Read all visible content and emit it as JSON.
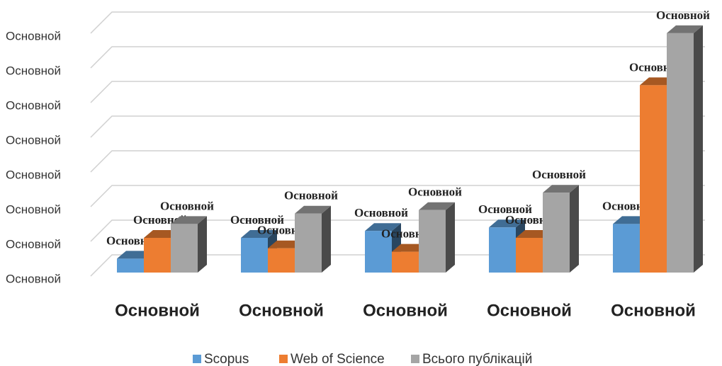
{
  "chart_data": {
    "type": "bar3d",
    "categories": [
      "Основной",
      "Основной",
      "Основной",
      "Основной",
      "Основной"
    ],
    "series": [
      {
        "name": "Scopus",
        "color": "#5b9bd5",
        "values": [
          4,
          10,
          12,
          13,
          14
        ],
        "value_labels": [
          "Основной",
          "Основной",
          "Основной",
          "Основной",
          "Основной"
        ]
      },
      {
        "name": "Web of Science",
        "color": "#ed7d31",
        "values": [
          10,
          7,
          6,
          10,
          54
        ],
        "value_labels": [
          "Основной",
          "Основной",
          "Основной",
          "Основной",
          "Основной"
        ]
      },
      {
        "name": "Всього публікацій",
        "color": "#a5a5a5",
        "values": [
          14,
          17,
          18,
          23,
          69
        ],
        "value_labels": [
          "Основной",
          "Основной",
          "Основной",
          "Основной",
          "Основной"
        ]
      }
    ],
    "ylim": [
      0,
      70
    ],
    "yticks": [
      {
        "value": 0,
        "label": "Основной"
      },
      {
        "value": 10,
        "label": "Основной"
      },
      {
        "value": 20,
        "label": "Основной"
      },
      {
        "value": 30,
        "label": "Основной"
      },
      {
        "value": 40,
        "label": "Основной"
      },
      {
        "value": 50,
        "label": "Основной"
      },
      {
        "value": 60,
        "label": "Основной"
      },
      {
        "value": 70,
        "label": "Основной"
      }
    ],
    "grid": true,
    "legend": "bottom"
  }
}
